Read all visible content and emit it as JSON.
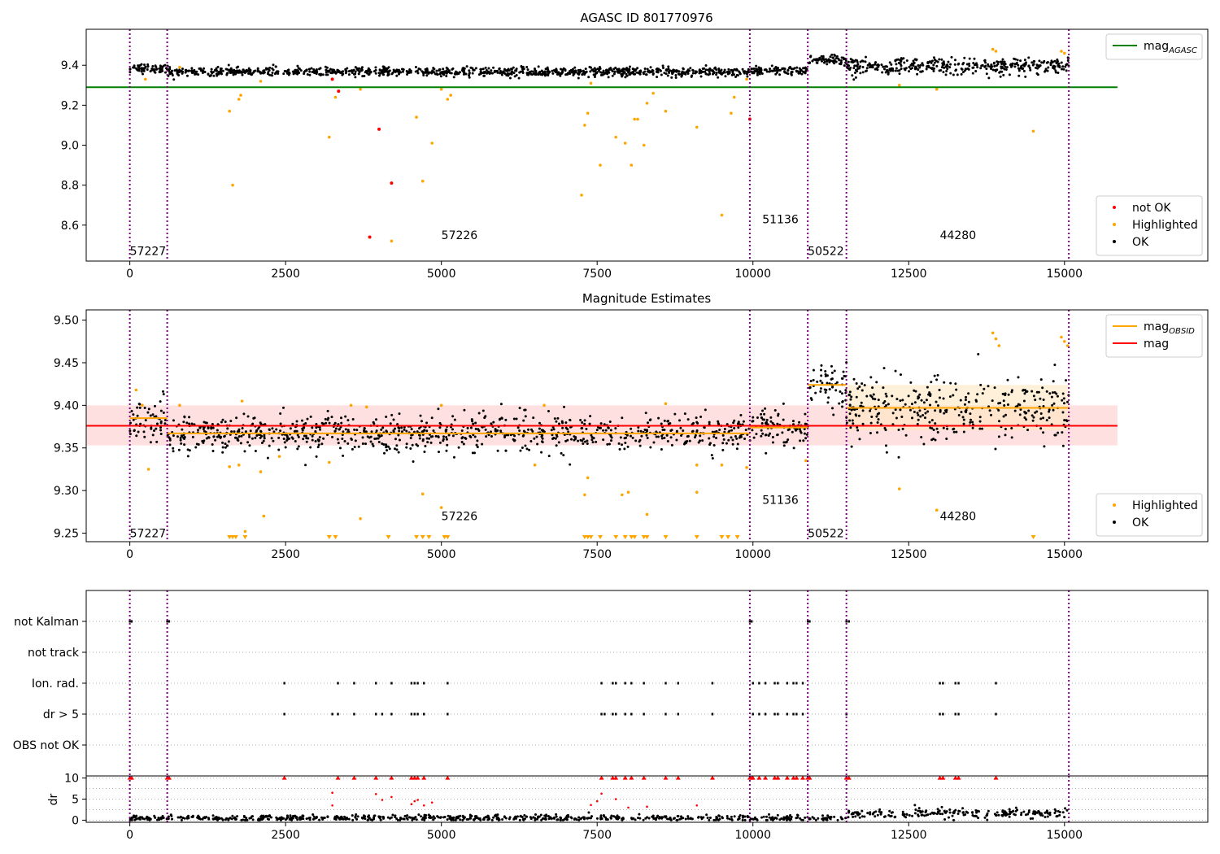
{
  "chart_data": [
    {
      "type": "scatter",
      "title": "AGASC ID 801770976",
      "xlim": [
        -700,
        17300
      ],
      "ylim": [
        8.42,
        9.58
      ],
      "xticks": [
        0,
        2500,
        5000,
        7500,
        10000,
        12500,
        15000
      ],
      "yticks": [
        8.6,
        8.8,
        9.0,
        9.2,
        9.4
      ],
      "grid": false,
      "mag_agasc": 9.29,
      "boundaries": [
        0,
        600,
        9950,
        10880,
        11500,
        15070
      ],
      "obsid_labels": [
        {
          "text": "57227",
          "x": 0,
          "y": 8.47
        },
        {
          "text": "57226",
          "x": 5000,
          "y": 8.55
        },
        {
          "text": "51136",
          "x": 10150,
          "y": 8.63
        },
        {
          "text": "50522",
          "x": 10880,
          "y": 8.47
        },
        {
          "text": "44280",
          "x": 13000,
          "y": 8.55
        }
      ],
      "legend_top": {
        "position": "top-right",
        "entries": [
          {
            "label": "mag",
            "sub": "AGASC",
            "color": "#008000"
          }
        ]
      },
      "legend_bottom": {
        "position": "bottom-right",
        "entries": [
          {
            "label": "not OK",
            "color": "#ff0000"
          },
          {
            "label": "Highlighted",
            "color": "#ffa500"
          },
          {
            "label": "OK",
            "color": "#000000"
          }
        ]
      },
      "series": [
        {
          "name": "OK",
          "segments": [
            {
              "x0": 0,
              "x1": 600,
              "mean": 9.385,
              "spread": 0.012
            },
            {
              "x0": 600,
              "x1": 9950,
              "mean": 9.367,
              "spread": 0.011
            },
            {
              "x0": 9950,
              "x1": 10880,
              "mean": 9.373,
              "spread": 0.011
            },
            {
              "x0": 10880,
              "x1": 11500,
              "mean": 9.425,
              "spread": 0.012
            },
            {
              "x0": 11500,
              "x1": 15070,
              "mean": 9.395,
              "spread": 0.02
            }
          ]
        },
        {
          "name": "Highlighted",
          "points": [
            [
              1600,
              9.17
            ],
            [
              1650,
              8.8
            ],
            [
              1750,
              9.23
            ],
            [
              1780,
              9.25
            ],
            [
              2100,
              9.32
            ],
            [
              3200,
              9.04
            ],
            [
              3300,
              9.24
            ],
            [
              3700,
              9.28
            ],
            [
              4200,
              8.52
            ],
            [
              4600,
              9.14
            ],
            [
              4700,
              8.82
            ],
            [
              4850,
              9.01
            ],
            [
              5000,
              9.28
            ],
            [
              5100,
              9.23
            ],
            [
              5150,
              9.25
            ],
            [
              7250,
              8.75
            ],
            [
              7300,
              9.1
            ],
            [
              7350,
              9.16
            ],
            [
              7400,
              9.31
            ],
            [
              7550,
              8.9
            ],
            [
              7800,
              9.04
            ],
            [
              7950,
              9.01
            ],
            [
              8050,
              8.9
            ],
            [
              8100,
              9.13
            ],
            [
              8150,
              9.13
            ],
            [
              8250,
              9.0
            ],
            [
              8300,
              9.21
            ],
            [
              8400,
              9.26
            ],
            [
              8600,
              9.17
            ],
            [
              9100,
              9.09
            ],
            [
              9500,
              8.65
            ],
            [
              9650,
              9.16
            ],
            [
              9700,
              9.24
            ],
            [
              12350,
              9.3
            ],
            [
              12950,
              9.28
            ],
            [
              14500,
              9.07
            ],
            [
              13850,
              9.48
            ],
            [
              13900,
              9.47
            ],
            [
              14950,
              9.47
            ],
            [
              15000,
              9.46
            ],
            [
              250,
              9.33
            ],
            [
              800,
              9.39
            ],
            [
              9900,
              9.33
            ]
          ]
        },
        {
          "name": "not OK",
          "points": [
            [
              3350,
              9.27
            ],
            [
              3850,
              8.54
            ],
            [
              4000,
              9.08
            ],
            [
              4200,
              8.81
            ],
            [
              9950,
              9.13
            ],
            [
              3250,
              9.33
            ]
          ]
        }
      ]
    },
    {
      "type": "scatter",
      "title": "Magnitude Estimates",
      "xlim": [
        -700,
        17300
      ],
      "ylim": [
        9.24,
        9.512
      ],
      "xticks": [
        0,
        2500,
        5000,
        7500,
        10000,
        12500,
        15000
      ],
      "yticks": [
        9.25,
        9.3,
        9.35,
        9.4,
        9.45,
        9.5
      ],
      "grid": false,
      "mag": 9.376,
      "mag_band": [
        9.353,
        9.4
      ],
      "band_right_edge": 15850,
      "obsid_mag": [
        {
          "x0": 0,
          "x1": 600,
          "mag": 9.385
        },
        {
          "x0": 600,
          "x1": 9950,
          "mag": 9.367
        },
        {
          "x0": 9950,
          "x1": 10880,
          "mag": 9.374
        },
        {
          "x0": 10880,
          "x1": 11500,
          "mag": 9.424
        },
        {
          "x0": 11500,
          "x1": 15070,
          "mag": 9.397
        }
      ],
      "obsid_band": [
        {
          "x0": 11500,
          "x1": 15070,
          "lo": 9.371,
          "hi": 9.424
        }
      ],
      "boundaries": [
        0,
        600,
        9950,
        10880,
        11500,
        15070
      ],
      "obsid_labels": [
        {
          "text": "57227",
          "x": 0,
          "y": 9.25
        },
        {
          "text": "57226",
          "x": 5000,
          "y": 9.27
        },
        {
          "text": "51136",
          "x": 10150,
          "y": 9.289
        },
        {
          "text": "50522",
          "x": 10880,
          "y": 9.25
        },
        {
          "text": "44280",
          "x": 13000,
          "y": 9.27
        }
      ],
      "legend_top": {
        "position": "top-right",
        "entries": [
          {
            "label": "mag",
            "sub": "OBSID",
            "color": "#ffa500"
          },
          {
            "label": "mag",
            "sub": "",
            "color": "#ff0000"
          }
        ]
      },
      "legend_bottom": {
        "position": "bottom-right",
        "entries": [
          {
            "label": "Highlighted",
            "color": "#ffa500"
          },
          {
            "label": "OK",
            "color": "#000000"
          }
        ]
      },
      "series": [
        {
          "name": "OK",
          "segments": [
            {
              "x0": 0,
              "x1": 600,
              "mean": 9.385,
              "spread": 0.012
            },
            {
              "x0": 600,
              "x1": 9950,
              "mean": 9.367,
              "spread": 0.011
            },
            {
              "x0": 9950,
              "x1": 10880,
              "mean": 9.373,
              "spread": 0.011
            },
            {
              "x0": 10880,
              "x1": 11500,
              "mean": 9.425,
              "spread": 0.012
            },
            {
              "x0": 11500,
              "x1": 15070,
              "mean": 9.395,
              "spread": 0.02
            }
          ]
        },
        {
          "name": "Highlighted",
          "points": [
            [
              100,
              9.418
            ],
            [
              200,
              9.4
            ],
            [
              300,
              9.325
            ],
            [
              800,
              9.4
            ],
            [
              1600,
              9.328
            ],
            [
              1750,
              9.33
            ],
            [
              1800,
              9.405
            ],
            [
              1850,
              9.252
            ],
            [
              2100,
              9.322
            ],
            [
              2150,
              9.27
            ],
            [
              2400,
              9.34
            ],
            [
              3200,
              9.333
            ],
            [
              3550,
              9.4
            ],
            [
              3700,
              9.267
            ],
            [
              3800,
              9.398
            ],
            [
              4700,
              9.296
            ],
            [
              5000,
              9.28
            ],
            [
              5000,
              9.4
            ],
            [
              6500,
              9.33
            ],
            [
              6650,
              9.4
            ],
            [
              7300,
              9.295
            ],
            [
              7350,
              9.315
            ],
            [
              7900,
              9.295
            ],
            [
              8000,
              9.298
            ],
            [
              8300,
              9.272
            ],
            [
              8600,
              9.402
            ],
            [
              9100,
              9.298
            ],
            [
              9100,
              9.33
            ],
            [
              9500,
              9.33
            ],
            [
              9900,
              9.327
            ],
            [
              10850,
              9.335
            ],
            [
              12350,
              9.302
            ],
            [
              12950,
              9.277
            ],
            [
              13850,
              9.485
            ],
            [
              13900,
              9.478
            ],
            [
              13950,
              9.47
            ],
            [
              14950,
              9.48
            ],
            [
              15000,
              9.475
            ],
            [
              15050,
              9.47
            ]
          ]
        },
        {
          "name": "Highlighted (below axis)",
          "x": [
            1600,
            1650,
            1700,
            1850,
            3200,
            3300,
            4150,
            4600,
            4700,
            4800,
            5050,
            5100,
            7300,
            7350,
            7400,
            7550,
            7800,
            7950,
            8050,
            8100,
            8250,
            8300,
            8600,
            9100,
            9500,
            9600,
            9750,
            14500
          ]
        }
      ]
    },
    {
      "type": "scatter",
      "title": "",
      "xlim": [
        -700,
        17300
      ],
      "categories": [
        "not Kalman",
        "not track",
        "Ion. rad.",
        "dr > 5",
        "OBS not OK"
      ],
      "grid": true,
      "boundaries": [
        0,
        600,
        9950,
        10880,
        11500,
        15070
      ],
      "flags": {
        "not Kalman": [
          0,
          30,
          600,
          630,
          9950,
          9980,
          10880,
          10910,
          11500,
          11540
        ],
        "not track": [],
        "Ion. rad.": [
          2480,
          3340,
          3600,
          3950,
          4200,
          4520,
          4570,
          4620,
          4720,
          5100,
          7570,
          7750,
          7800,
          7950,
          8050,
          8250,
          8600,
          8800,
          9350,
          10000,
          10100,
          10200,
          10350,
          10400,
          10550,
          10650,
          10700,
          10800,
          13000,
          13050,
          13250,
          13300,
          13900
        ],
        "dr > 5": [
          2480,
          3250,
          3340,
          3600,
          3950,
          4050,
          4200,
          4520,
          4570,
          4620,
          4720,
          5100,
          7570,
          7620,
          7750,
          7800,
          7950,
          8050,
          8250,
          8600,
          8800,
          9350,
          10000,
          10100,
          10200,
          10350,
          10400,
          10550,
          10650,
          10700,
          10800,
          11500,
          13000,
          13050,
          13250,
          13300,
          13900
        ],
        "OBS not OK": []
      }
    },
    {
      "type": "scatter",
      "title": "",
      "ylabel": "dr",
      "xlim": [
        -700,
        17300
      ],
      "ylim": [
        -0.5,
        10.5
      ],
      "xticks": [
        0,
        2500,
        5000,
        7500,
        10000,
        12500,
        15000
      ],
      "yticks": [
        0,
        5,
        10
      ],
      "grid": true,
      "boundaries": [
        0,
        600,
        9950,
        10880,
        11500,
        15070
      ],
      "series": [
        {
          "name": "OK",
          "segments": [
            {
              "x0": 0,
              "x1": 11500,
              "mean": 0.5,
              "spread": 0.35
            },
            {
              "x0": 11500,
              "x1": 15070,
              "mean": 1.6,
              "spread": 0.6
            }
          ]
        },
        {
          "name": "not OK",
          "capped_x": [
            0,
            30,
            600,
            630,
            2480,
            3340,
            3600,
            3950,
            4200,
            4520,
            4570,
            4620,
            4720,
            5100,
            7570,
            7750,
            7800,
            7950,
            8050,
            8250,
            8600,
            8800,
            9350,
            9950,
            9980,
            10000,
            10100,
            10200,
            10350,
            10400,
            10550,
            10650,
            10700,
            10800,
            10880,
            10910,
            11500,
            11540,
            13000,
            13050,
            13250,
            13300,
            13900
          ],
          "points": [
            [
              3250,
              6.5
            ],
            [
              3250,
              3.5
            ],
            [
              3950,
              6.2
            ],
            [
              4050,
              4.8
            ],
            [
              4200,
              5.5
            ],
            [
              4520,
              3.8
            ],
            [
              4570,
              4.5
            ],
            [
              4620,
              4.8
            ],
            [
              4720,
              3.5
            ],
            [
              4850,
              4.2
            ],
            [
              7570,
              6.3
            ],
            [
              7400,
              3.6
            ],
            [
              7500,
              4.5
            ],
            [
              7800,
              5.0
            ],
            [
              8300,
              3.2
            ],
            [
              8000,
              3.0
            ],
            [
              9100,
              3.5
            ]
          ]
        }
      ]
    }
  ]
}
